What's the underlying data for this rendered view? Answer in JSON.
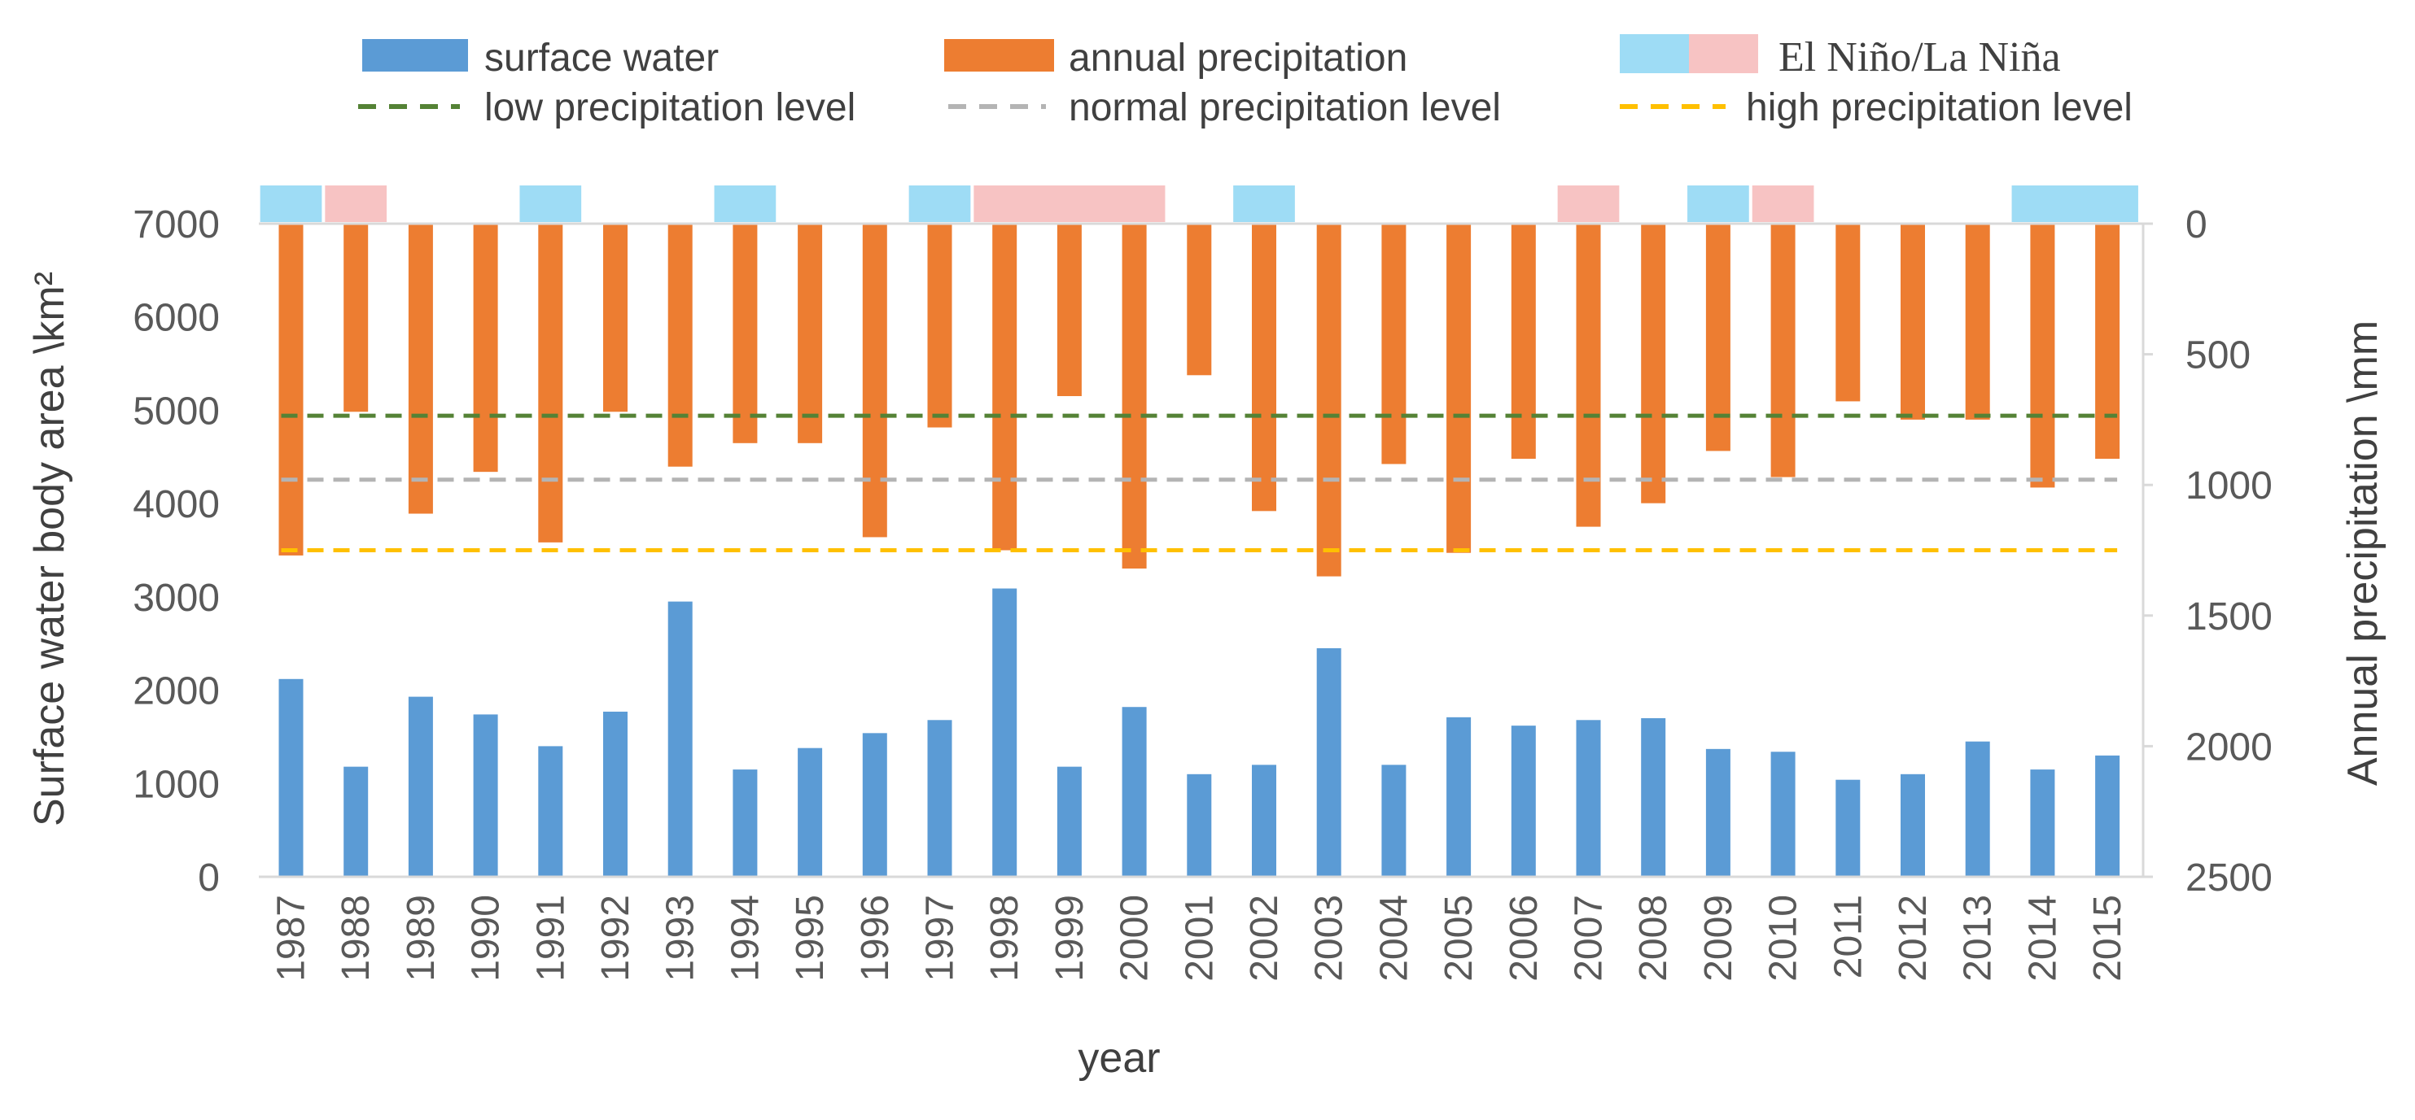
{
  "chart_data": {
    "type": "bar",
    "categories": [
      "1987",
      "1988",
      "1989",
      "1990",
      "1991",
      "1992",
      "1993",
      "1994",
      "1995",
      "1996",
      "1997",
      "1998",
      "1999",
      "2000",
      "2001",
      "2002",
      "2003",
      "2004",
      "2005",
      "2006",
      "2007",
      "2008",
      "2009",
      "2010",
      "2011",
      "2012",
      "2013",
      "2014",
      "2015"
    ],
    "series": [
      {
        "name": "surface water",
        "axis": "left",
        "color": "#5b9bd5",
        "values": [
          2120,
          1180,
          1930,
          1740,
          1400,
          1770,
          2950,
          1150,
          1380,
          1540,
          1680,
          3090,
          1180,
          1820,
          1100,
          1200,
          2450,
          1200,
          1710,
          1620,
          1680,
          1700,
          1370,
          1340,
          1040,
          1100,
          1450,
          1150,
          1300
        ]
      },
      {
        "name": "annual precipitation",
        "axis": "right",
        "color": "#ed7d31",
        "values": [
          1270,
          720,
          1110,
          950,
          1220,
          720,
          930,
          840,
          840,
          1200,
          780,
          1250,
          660,
          1320,
          580,
          1100,
          1350,
          920,
          1260,
          900,
          1160,
          1070,
          870,
          970,
          680,
          750,
          750,
          1010,
          900
        ]
      }
    ],
    "reference_lines": [
      {
        "name": "low precipitation level",
        "value": 735,
        "color": "#548235"
      },
      {
        "name": "normal precipitation level",
        "value": 980,
        "color": "#b4b4b4"
      },
      {
        "name": "high precipitation level",
        "value": 1250,
        "color": "#ffc000"
      }
    ],
    "enso_events": [
      {
        "type": "El Niño",
        "start": "1987",
        "end": "1987"
      },
      {
        "type": "La Niña",
        "start": "1988",
        "end": "1988"
      },
      {
        "type": "El Niño",
        "start": "1991",
        "end": "1991"
      },
      {
        "type": "El Niño",
        "start": "1994",
        "end": "1994"
      },
      {
        "type": "El Niño",
        "start": "1997",
        "end": "1997"
      },
      {
        "type": "La Niña",
        "start": "1998",
        "end": "2000"
      },
      {
        "type": "El Niño",
        "start": "2002",
        "end": "2002"
      },
      {
        "type": "La Niña",
        "start": "2007",
        "end": "2007"
      },
      {
        "type": "El Niño",
        "start": "2009",
        "end": "2009"
      },
      {
        "type": "La Niña",
        "start": "2010",
        "end": "2010"
      },
      {
        "type": "El Niño",
        "start": "2014",
        "end": "2015"
      }
    ],
    "enso_colors": {
      "El Niño": "#9edcf5",
      "La Niña": "#f7c3c3"
    },
    "xlabel": "year",
    "ylabel_left": "Surface water body area \\km²",
    "ylabel_right": "Annual precipitation \\mm",
    "ylim_left": [
      0,
      7000
    ],
    "yticks_left": [
      0,
      1000,
      2000,
      3000,
      4000,
      5000,
      6000,
      7000
    ],
    "ylim_right": [
      0,
      2500
    ],
    "ylim_right_inverted": true,
    "yticks_right": [
      0,
      500,
      1000,
      1500,
      2000,
      2500
    ],
    "legend": {
      "surface_water": "surface water",
      "annual_precipitation": "annual precipitation",
      "enso": "El Niño/La Niña",
      "low": "low precipitation level",
      "normal": "normal precipitation level",
      "high": "high precipitation level"
    },
    "grid": false
  }
}
